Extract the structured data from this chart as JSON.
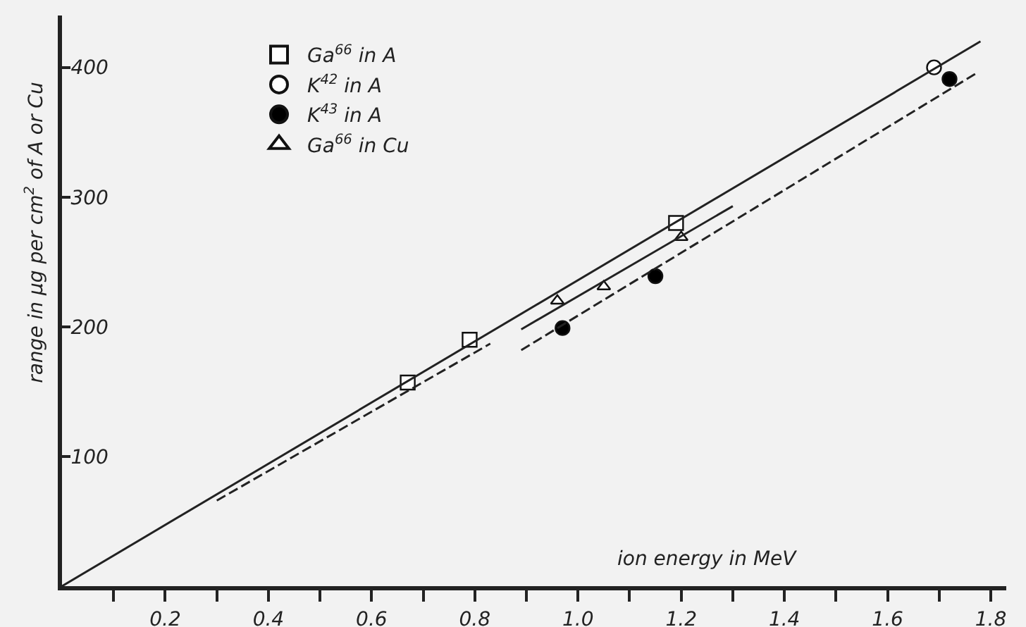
{
  "chart_data": {
    "type": "scatter",
    "xlabel": "ion energy in MeV",
    "ylabel": "range in µg per cm$^{2}$ of A or Cu",
    "xlim": [
      0,
      1.83
    ],
    "ylim": [
      0,
      440
    ],
    "xticks": [
      {
        "value": 0.1,
        "label": null
      },
      0.2,
      {
        "value": 0.3,
        "label": null
      },
      0.4,
      {
        "value": 0.5,
        "label": null
      },
      0.6,
      {
        "value": 0.7,
        "label": null
      },
      0.8,
      {
        "value": 0.9,
        "label": null
      },
      {
        "value": 1.0,
        "label": "1.0"
      },
      {
        "value": 1.1,
        "label": null
      },
      1.2,
      {
        "value": 1.3,
        "label": null
      },
      1.4,
      {
        "value": 1.5,
        "label": null
      },
      1.6,
      {
        "value": 1.7,
        "label": null
      },
      1.8
    ],
    "yticks": [
      100,
      200,
      300,
      400
    ],
    "grid": false,
    "legend": "top left",
    "series": [
      {
        "name": "Ga$^{66}$ in A",
        "marker": "square",
        "color": "#ffffff",
        "x": [
          0.67,
          0.79,
          1.19
        ],
        "values": [
          157,
          190,
          280
        ]
      },
      {
        "name": "K$^{42}$ in A",
        "marker": "circle",
        "color": "#ffffff",
        "x": [
          1.69
        ],
        "values": [
          400
        ]
      },
      {
        "name": "K$^{43}$ in A",
        "marker": "circle",
        "color": "#000000",
        "x": [
          0.97,
          1.15,
          1.72
        ],
        "values": [
          199,
          239,
          391
        ]
      },
      {
        "name": "Ga$^{66}$ in Cu",
        "marker": "triangle",
        "color": "#ffffff",
        "x": [
          0.96,
          1.05,
          1.2
        ],
        "values": [
          220,
          231,
          269
        ]
      },
      {
        "type": "line",
        "line_style": "solid",
        "color": "#222222",
        "x": [
          0,
          1.78
        ],
        "values": [
          0,
          420
        ]
      },
      {
        "type": "line",
        "line_style": "solid",
        "color": "#222222",
        "x": [
          0.89,
          1.3
        ],
        "values": [
          198,
          293
        ]
      },
      {
        "type": "line",
        "line_style": "dashed",
        "color": "#222222",
        "x": [
          0.3,
          0.83
        ],
        "values": [
          66,
          187
        ]
      },
      {
        "type": "line",
        "line_style": "dashed",
        "color": "#222222",
        "x": [
          0.89,
          1.77
        ],
        "values": [
          182,
          395
        ]
      }
    ]
  }
}
